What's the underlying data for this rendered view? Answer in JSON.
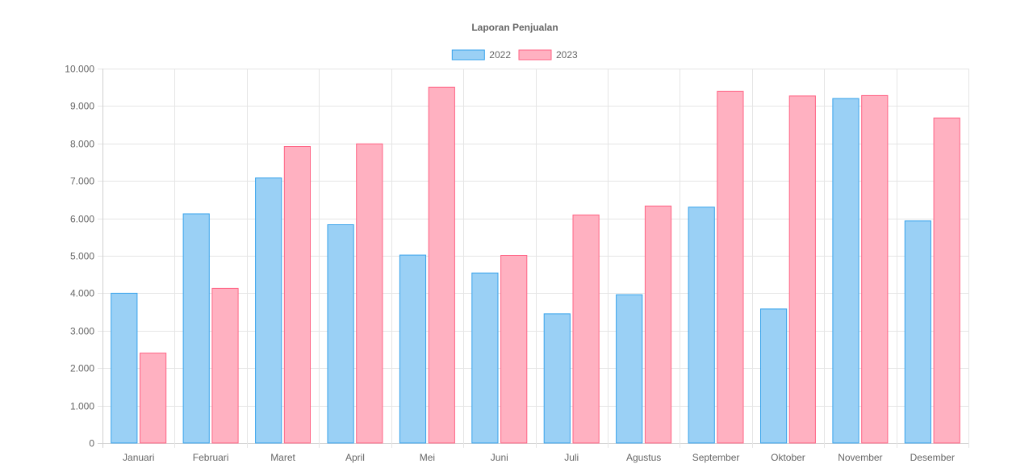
{
  "chart_data": {
    "type": "bar",
    "title": "Laporan Penjualan",
    "xlabel": "",
    "ylabel": "",
    "categories": [
      "Januari",
      "Februari",
      "Maret",
      "April",
      "Mei",
      "Juni",
      "Juli",
      "Agustus",
      "September",
      "Oktober",
      "November",
      "Desember"
    ],
    "series": [
      {
        "name": "2022",
        "fill": "#9AD0F5",
        "stroke": "#36A2EB",
        "values": [
          4000,
          6120,
          7080,
          5830,
          5020,
          4540,
          3450,
          3960,
          6300,
          3580,
          9200,
          5930
        ]
      },
      {
        "name": "2023",
        "fill": "#FFB1C1",
        "stroke": "#FF6384",
        "values": [
          2400,
          4130,
          7920,
          7990,
          9500,
          5010,
          6090,
          6330,
          9390,
          9270,
          9280,
          8680
        ]
      }
    ],
    "ylim": [
      0,
      10000
    ],
    "yticks": [
      {
        "value": 0,
        "label": "0"
      },
      {
        "value": 1000,
        "label": "1.000"
      },
      {
        "value": 2000,
        "label": "2.000"
      },
      {
        "value": 3000,
        "label": "3.000"
      },
      {
        "value": 4000,
        "label": "4.000"
      },
      {
        "value": 5000,
        "label": "5.000"
      },
      {
        "value": 6000,
        "label": "6.000"
      },
      {
        "value": 7000,
        "label": "7.000"
      },
      {
        "value": 8000,
        "label": "8.000"
      },
      {
        "value": 9000,
        "label": "9.000"
      },
      {
        "value": 10000,
        "label": "10.000"
      }
    ],
    "grid": true,
    "legend_position": "top-center"
  }
}
